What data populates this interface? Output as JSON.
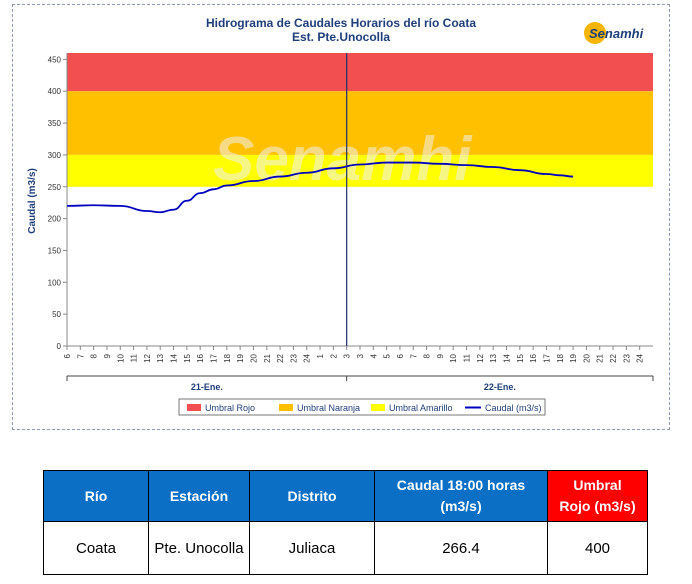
{
  "chart_data": {
    "type": "line",
    "title": "Hidrograma de Caudales Horarios del río Coata",
    "subtitle": "Est. Pte.Unocolla",
    "ylabel": "Caudal  (m3/s)",
    "ylim": [
      0,
      460
    ],
    "yticks": [
      0,
      50,
      100,
      150,
      200,
      250,
      300,
      350,
      400,
      450
    ],
    "x_hour_labels": [
      "6",
      "7",
      "8",
      "9",
      "10",
      "11",
      "12",
      "13",
      "14",
      "15",
      "16",
      "17",
      "18",
      "19",
      "20",
      "21",
      "22",
      "23",
      "24",
      "1",
      "2",
      "3",
      "3",
      "4",
      "5",
      "6",
      "7",
      "8",
      "9",
      "10",
      "11",
      "12",
      "13",
      "14",
      "15",
      "16",
      "17",
      "18",
      "19",
      "20",
      "21",
      "22",
      "23",
      "24"
    ],
    "date_labels": [
      "21-Ene.",
      "22-Ene."
    ],
    "bands": [
      {
        "name": "Umbral Rojo",
        "from": 400,
        "to": 460,
        "color": "#f25050"
      },
      {
        "name": "Umbral Naranja",
        "from": 300,
        "to": 400,
        "color": "#ffc000"
      },
      {
        "name": "Umbral Amarillo",
        "from": 250,
        "to": 300,
        "color": "#ffff00"
      }
    ],
    "series": [
      {
        "name": "Caudal (m3/s)",
        "color": "#0000c0",
        "x": [
          0,
          2,
          4,
          6,
          7,
          8,
          9,
          10,
          11,
          12,
          14,
          16,
          18,
          20,
          22,
          24,
          26,
          28,
          30,
          32,
          34,
          36,
          37,
          38
        ],
        "values": [
          220,
          221,
          220,
          212,
          210,
          214,
          228,
          240,
          246,
          252,
          259,
          266,
          272,
          279,
          285,
          288,
          288,
          286,
          284,
          281,
          276,
          270,
          268,
          266
        ]
      }
    ],
    "grid": false,
    "legend_position": "bottom"
  },
  "brand": {
    "logo_text": "Senamhi",
    "watermark_text": "Senamhi"
  },
  "table": {
    "headers": [
      {
        "line1": "Río",
        "line2": ""
      },
      {
        "line1": "Estación",
        "line2": ""
      },
      {
        "line1": "Distrito",
        "line2": ""
      },
      {
        "line1": "Caudal  18:00 horas",
        "line2": "(m3/s)"
      },
      {
        "line1": "Umbral",
        "line2": "Rojo (m3/s)"
      }
    ],
    "row": [
      "Coata",
      "Pte. Unocolla",
      "Juliaca",
      "266.4",
      "400"
    ]
  }
}
